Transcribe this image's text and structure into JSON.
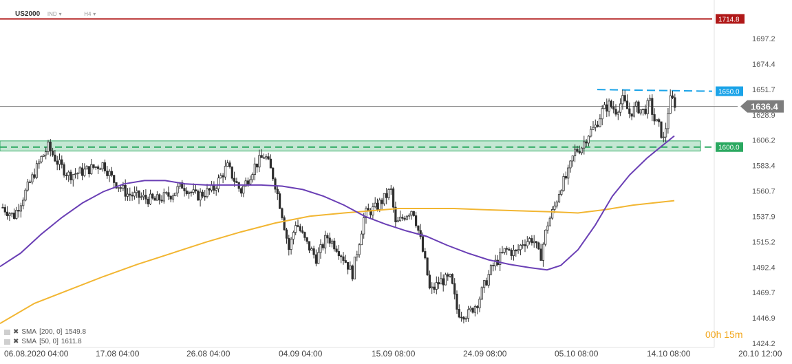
{
  "header": {
    "symbol": "US2000",
    "group": "IND",
    "timeframe": "H4"
  },
  "timer": "00h 15m",
  "legend": [
    {
      "label": "SMA",
      "params": "[200, 0]",
      "value": "1549.8",
      "color": "#f2b632"
    },
    {
      "label": "SMA",
      "params": "[50, 0]",
      "value": "1611.8",
      "color": "#6a3fb5"
    }
  ],
  "colors": {
    "up": "#2f2f2f",
    "down": "#2f2f2f",
    "sma200": "#f2b632",
    "sma50": "#6a3fb5",
    "resistance": "#b01818",
    "level1650": "#1aa3e8",
    "zone": "#2aa860",
    "price_tag": "#7d7d7d"
  },
  "chart_data": {
    "type": "candlestick",
    "y_ticks": [
      1697.2,
      1674.4,
      1651.7,
      1628.9,
      1606.2,
      1583.4,
      1560.7,
      1537.9,
      1515.2,
      1492.4,
      1469.7,
      1446.9,
      1424.2
    ],
    "x_ticks": [
      "06.08.2020 04:00",
      "17.08 04:00",
      "26.08 04:00",
      "04.09 04:00",
      "15.09 08:00",
      "24.09 08:00",
      "05.10 08:00",
      "14.10 08:00",
      "20.10 12:00"
    ],
    "ylim": [
      1418,
      1722
    ],
    "levels": {
      "resistance": {
        "label": "1714.8",
        "value": 1714.8
      },
      "level_1650": {
        "label": "1650.0",
        "value": 1650.0
      },
      "level_1600": {
        "label": "1600.0",
        "value": 1600.0
      },
      "current_price": {
        "label": "1636.4",
        "value": 1636.4
      }
    },
    "support_zone": [
      1596.5,
      1605.5
    ],
    "close_path": [
      [
        0,
        1548
      ],
      [
        20,
        1538
      ],
      [
        45,
        1570
      ],
      [
        60,
        1590
      ],
      [
        70,
        1600
      ],
      [
        85,
        1585
      ],
      [
        100,
        1575
      ],
      [
        120,
        1578
      ],
      [
        150,
        1585
      ],
      [
        165,
        1570
      ],
      [
        185,
        1558
      ],
      [
        205,
        1555
      ],
      [
        225,
        1552
      ],
      [
        250,
        1558
      ],
      [
        265,
        1566
      ],
      [
        285,
        1556
      ],
      [
        310,
        1562
      ],
      [
        330,
        1583
      ],
      [
        350,
        1560
      ],
      [
        370,
        1583
      ],
      [
        385,
        1593
      ],
      [
        398,
        1572
      ],
      [
        410,
        1540
      ],
      [
        420,
        1508
      ],
      [
        430,
        1533
      ],
      [
        445,
        1514
      ],
      [
        460,
        1500
      ],
      [
        475,
        1520
      ],
      [
        490,
        1510
      ],
      [
        505,
        1495
      ],
      [
        512,
        1486
      ],
      [
        520,
        1510
      ],
      [
        530,
        1540
      ],
      [
        545,
        1545
      ],
      [
        560,
        1555
      ],
      [
        568,
        1562
      ],
      [
        575,
        1530
      ],
      [
        590,
        1540
      ],
      [
        600,
        1545
      ],
      [
        610,
        1520
      ],
      [
        620,
        1490
      ],
      [
        625,
        1470
      ],
      [
        640,
        1480
      ],
      [
        655,
        1482
      ],
      [
        665,
        1452
      ],
      [
        680,
        1450
      ],
      [
        695,
        1462
      ],
      [
        705,
        1478
      ],
      [
        715,
        1492
      ],
      [
        735,
        1508
      ],
      [
        750,
        1505
      ],
      [
        760,
        1515
      ],
      [
        775,
        1518
      ],
      [
        785,
        1500
      ],
      [
        795,
        1530
      ],
      [
        805,
        1545
      ],
      [
        815,
        1565
      ],
      [
        825,
        1575
      ],
      [
        835,
        1596
      ],
      [
        845,
        1600
      ],
      [
        855,
        1612
      ],
      [
        865,
        1618
      ],
      [
        875,
        1632
      ],
      [
        885,
        1638
      ],
      [
        895,
        1633
      ],
      [
        905,
        1642
      ],
      [
        915,
        1630
      ],
      [
        925,
        1636
      ],
      [
        935,
        1632
      ],
      [
        945,
        1640
      ],
      [
        950,
        1625
      ],
      [
        958,
        1618
      ],
      [
        965,
        1605
      ],
      [
        970,
        1630
      ],
      [
        975,
        1644
      ],
      [
        982,
        1638
      ]
    ],
    "series": [
      {
        "name": "SMA [200, 0]",
        "points": [
          [
            0,
            1442
          ],
          [
            50,
            1460
          ],
          [
            100,
            1472
          ],
          [
            150,
            1484
          ],
          [
            200,
            1495
          ],
          [
            250,
            1505
          ],
          [
            300,
            1515
          ],
          [
            350,
            1524
          ],
          [
            400,
            1532
          ],
          [
            450,
            1538
          ],
          [
            500,
            1541
          ],
          [
            540,
            1543
          ],
          [
            580,
            1545
          ],
          [
            620,
            1545
          ],
          [
            660,
            1545
          ],
          [
            700,
            1544
          ],
          [
            750,
            1543
          ],
          [
            800,
            1542
          ],
          [
            840,
            1541
          ],
          [
            880,
            1544
          ],
          [
            920,
            1548
          ],
          [
            980,
            1552
          ]
        ]
      },
      {
        "name": "SMA [50, 0]",
        "points": [
          [
            0,
            1493
          ],
          [
            30,
            1505
          ],
          [
            60,
            1522
          ],
          [
            90,
            1537
          ],
          [
            120,
            1550
          ],
          [
            150,
            1560
          ],
          [
            180,
            1567
          ],
          [
            210,
            1570
          ],
          [
            240,
            1570
          ],
          [
            270,
            1567
          ],
          [
            300,
            1566
          ],
          [
            340,
            1566
          ],
          [
            380,
            1566
          ],
          [
            410,
            1565
          ],
          [
            440,
            1562
          ],
          [
            470,
            1556
          ],
          [
            500,
            1548
          ],
          [
            530,
            1538
          ],
          [
            560,
            1531
          ],
          [
            590,
            1525
          ],
          [
            620,
            1520
          ],
          [
            650,
            1512
          ],
          [
            680,
            1505
          ],
          [
            710,
            1499
          ],
          [
            740,
            1495
          ],
          [
            770,
            1492
          ],
          [
            795,
            1490
          ],
          [
            815,
            1494
          ],
          [
            840,
            1508
          ],
          [
            865,
            1530
          ],
          [
            890,
            1556
          ],
          [
            915,
            1575
          ],
          [
            940,
            1590
          ],
          [
            960,
            1600
          ],
          [
            980,
            1610
          ]
        ]
      }
    ]
  }
}
